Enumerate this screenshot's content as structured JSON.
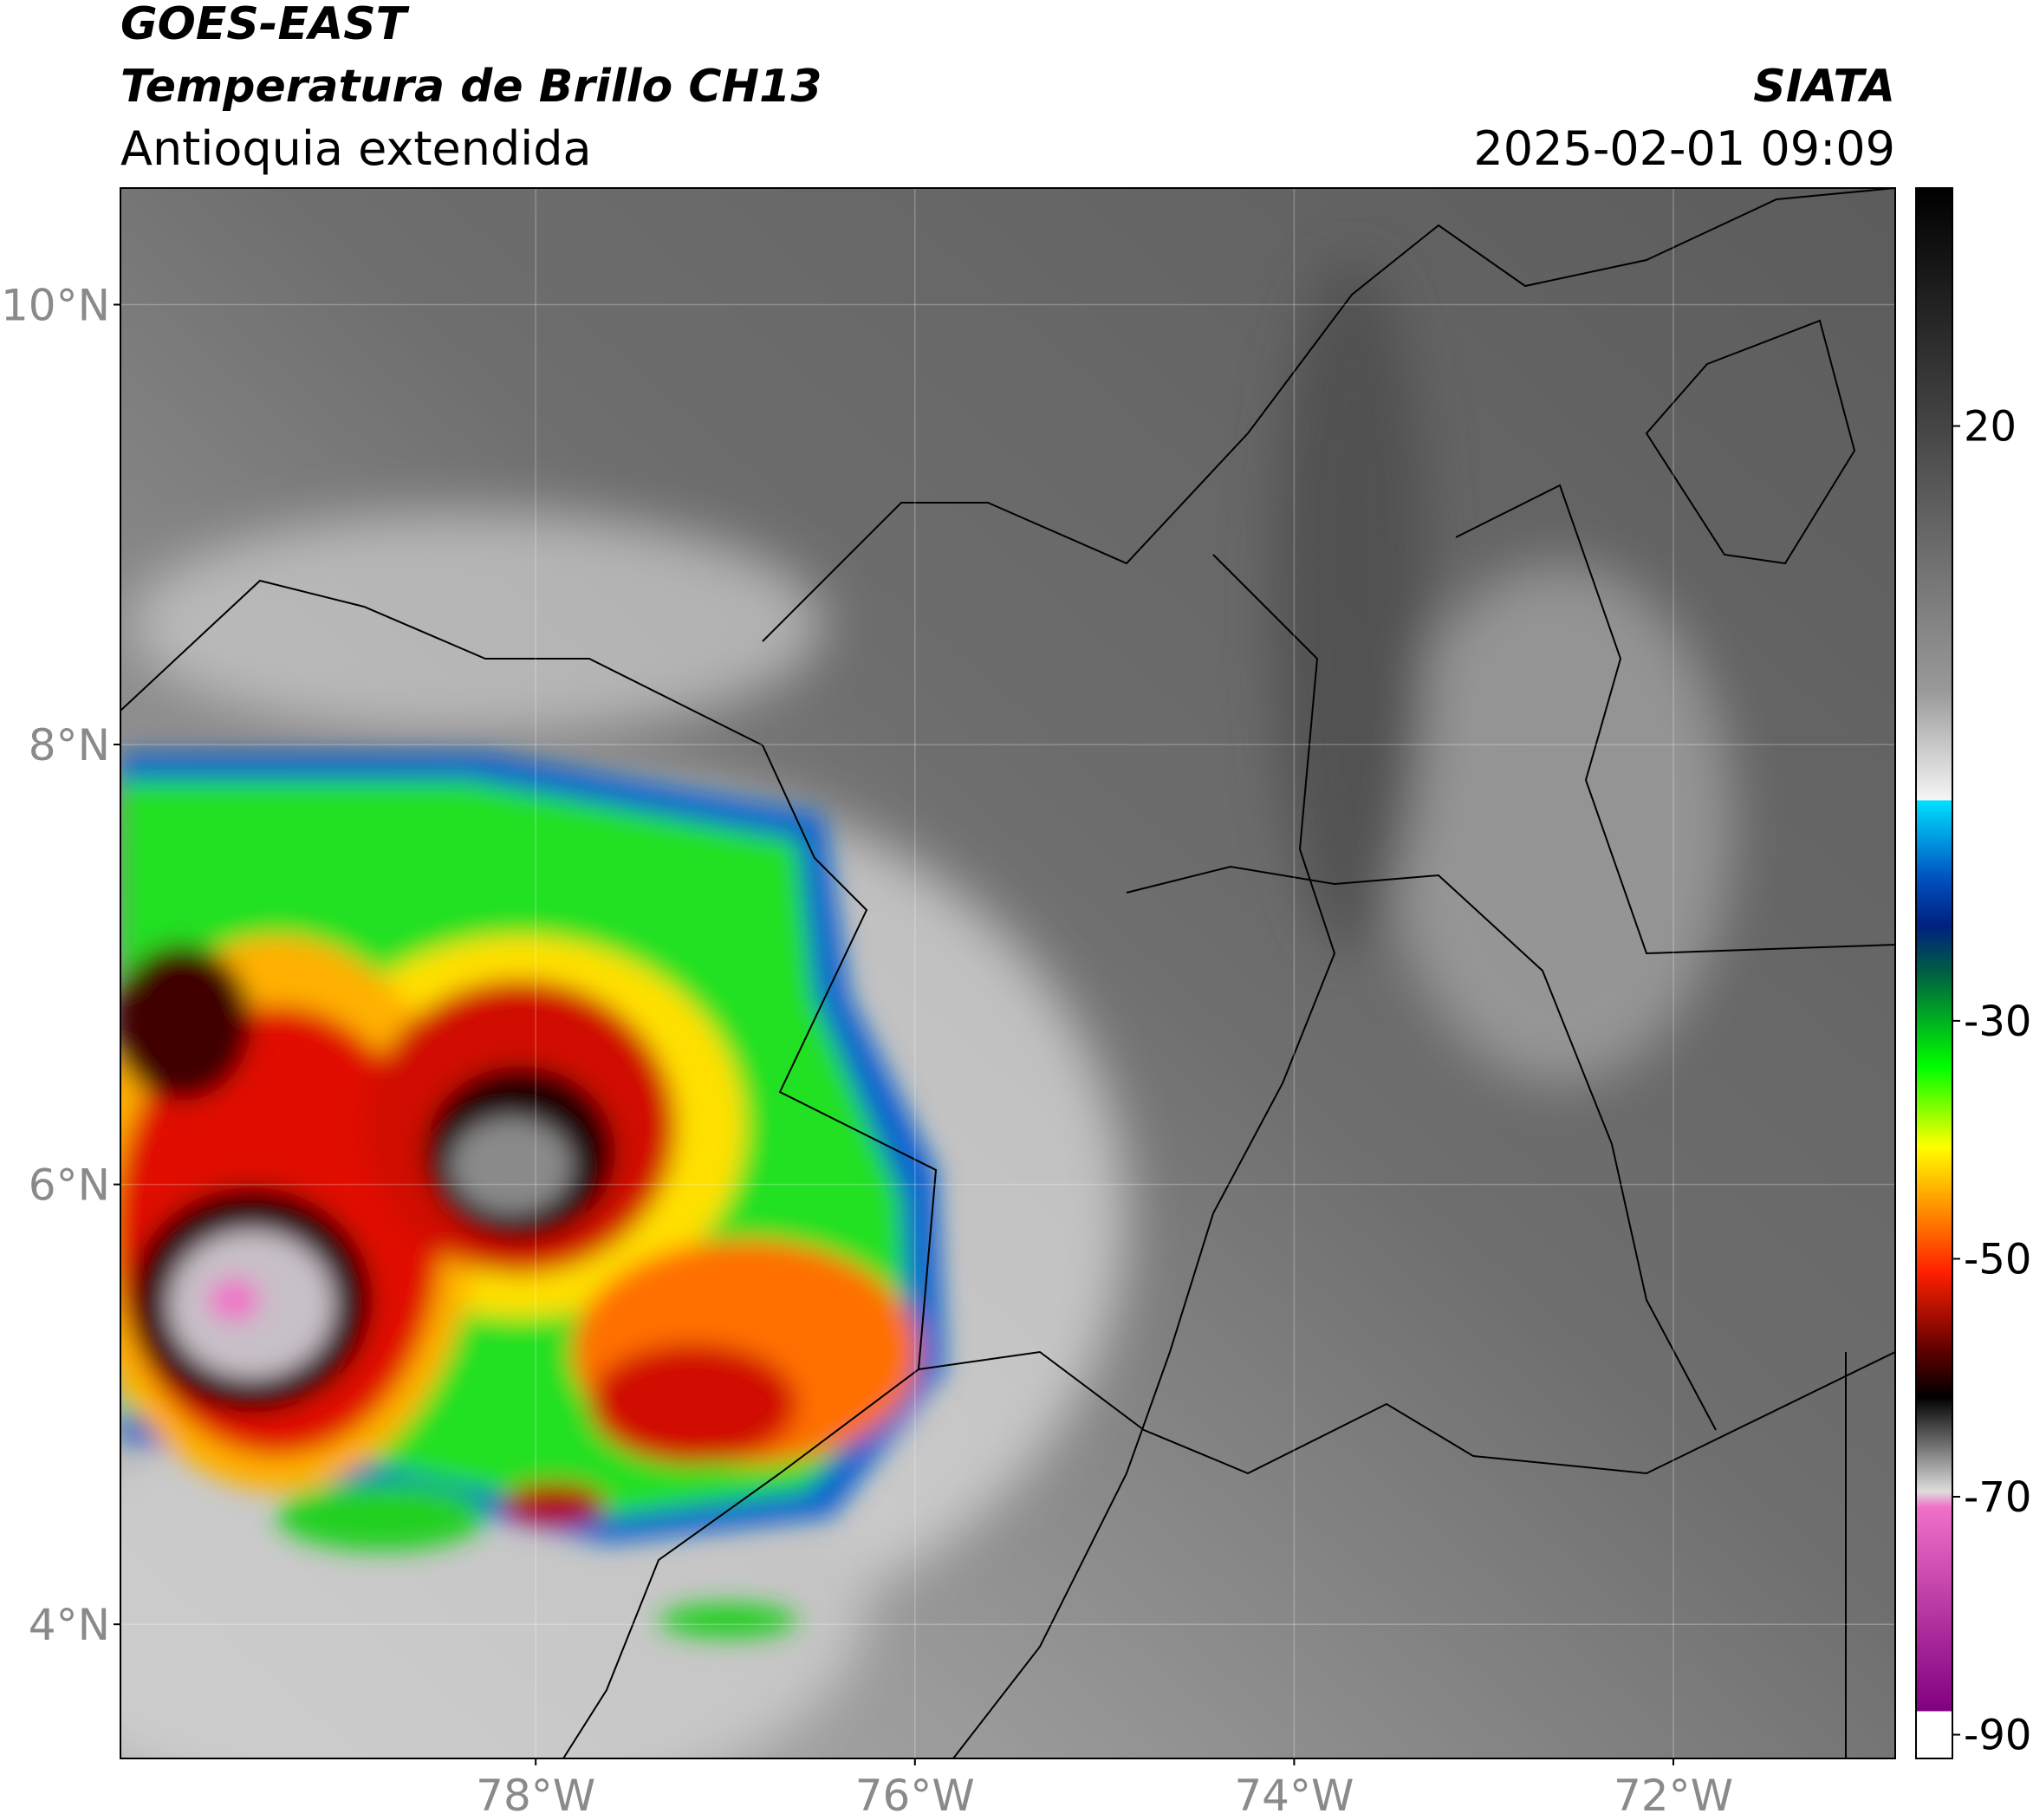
{
  "header": {
    "title": "GOES-EAST",
    "subtitle": "Temperatura de Brillo CH13",
    "region": "Antioquia extendida",
    "source": "SIATA",
    "datetime": "2025-02-01 09:09"
  },
  "map": {
    "xlim": [
      -80.19,
      -70.83
    ],
    "ylim": [
      3.39,
      10.53
    ],
    "xticks": [
      {
        "value": -78,
        "label": "78°W"
      },
      {
        "value": -76,
        "label": "76°W"
      },
      {
        "value": -74,
        "label": "74°W"
      },
      {
        "value": -72,
        "label": "72°W"
      }
    ],
    "yticks": [
      {
        "value": 4,
        "label": "4°N"
      },
      {
        "value": 6,
        "label": "6°N"
      },
      {
        "value": 8,
        "label": "8°N"
      },
      {
        "value": 10,
        "label": "10°N"
      }
    ],
    "grid": true
  },
  "colorbar": {
    "clim": [
      -92,
      40
    ],
    "ticks": [
      20,
      -30,
      -50,
      -70,
      -90
    ]
  }
}
